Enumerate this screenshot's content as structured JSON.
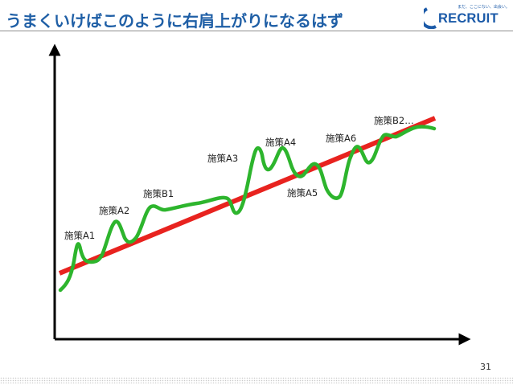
{
  "slide": {
    "title": "うまくいけばこのように右肩上がりになるはず",
    "page_number": "31"
  },
  "logo": {
    "name": "RECRUIT",
    "tagline": "まだ、ここにない、出会い。",
    "color": "#1b5aa8"
  },
  "diagram": {
    "trend_color": "#e8231f",
    "curve_color": "#2db52d",
    "axis_color": "#000000",
    "labels": [
      "施策A1",
      "施策A2",
      "施策B1",
      "施策A3",
      "施策A4",
      "施策A5",
      "施策A6",
      "施策B2…"
    ]
  }
}
